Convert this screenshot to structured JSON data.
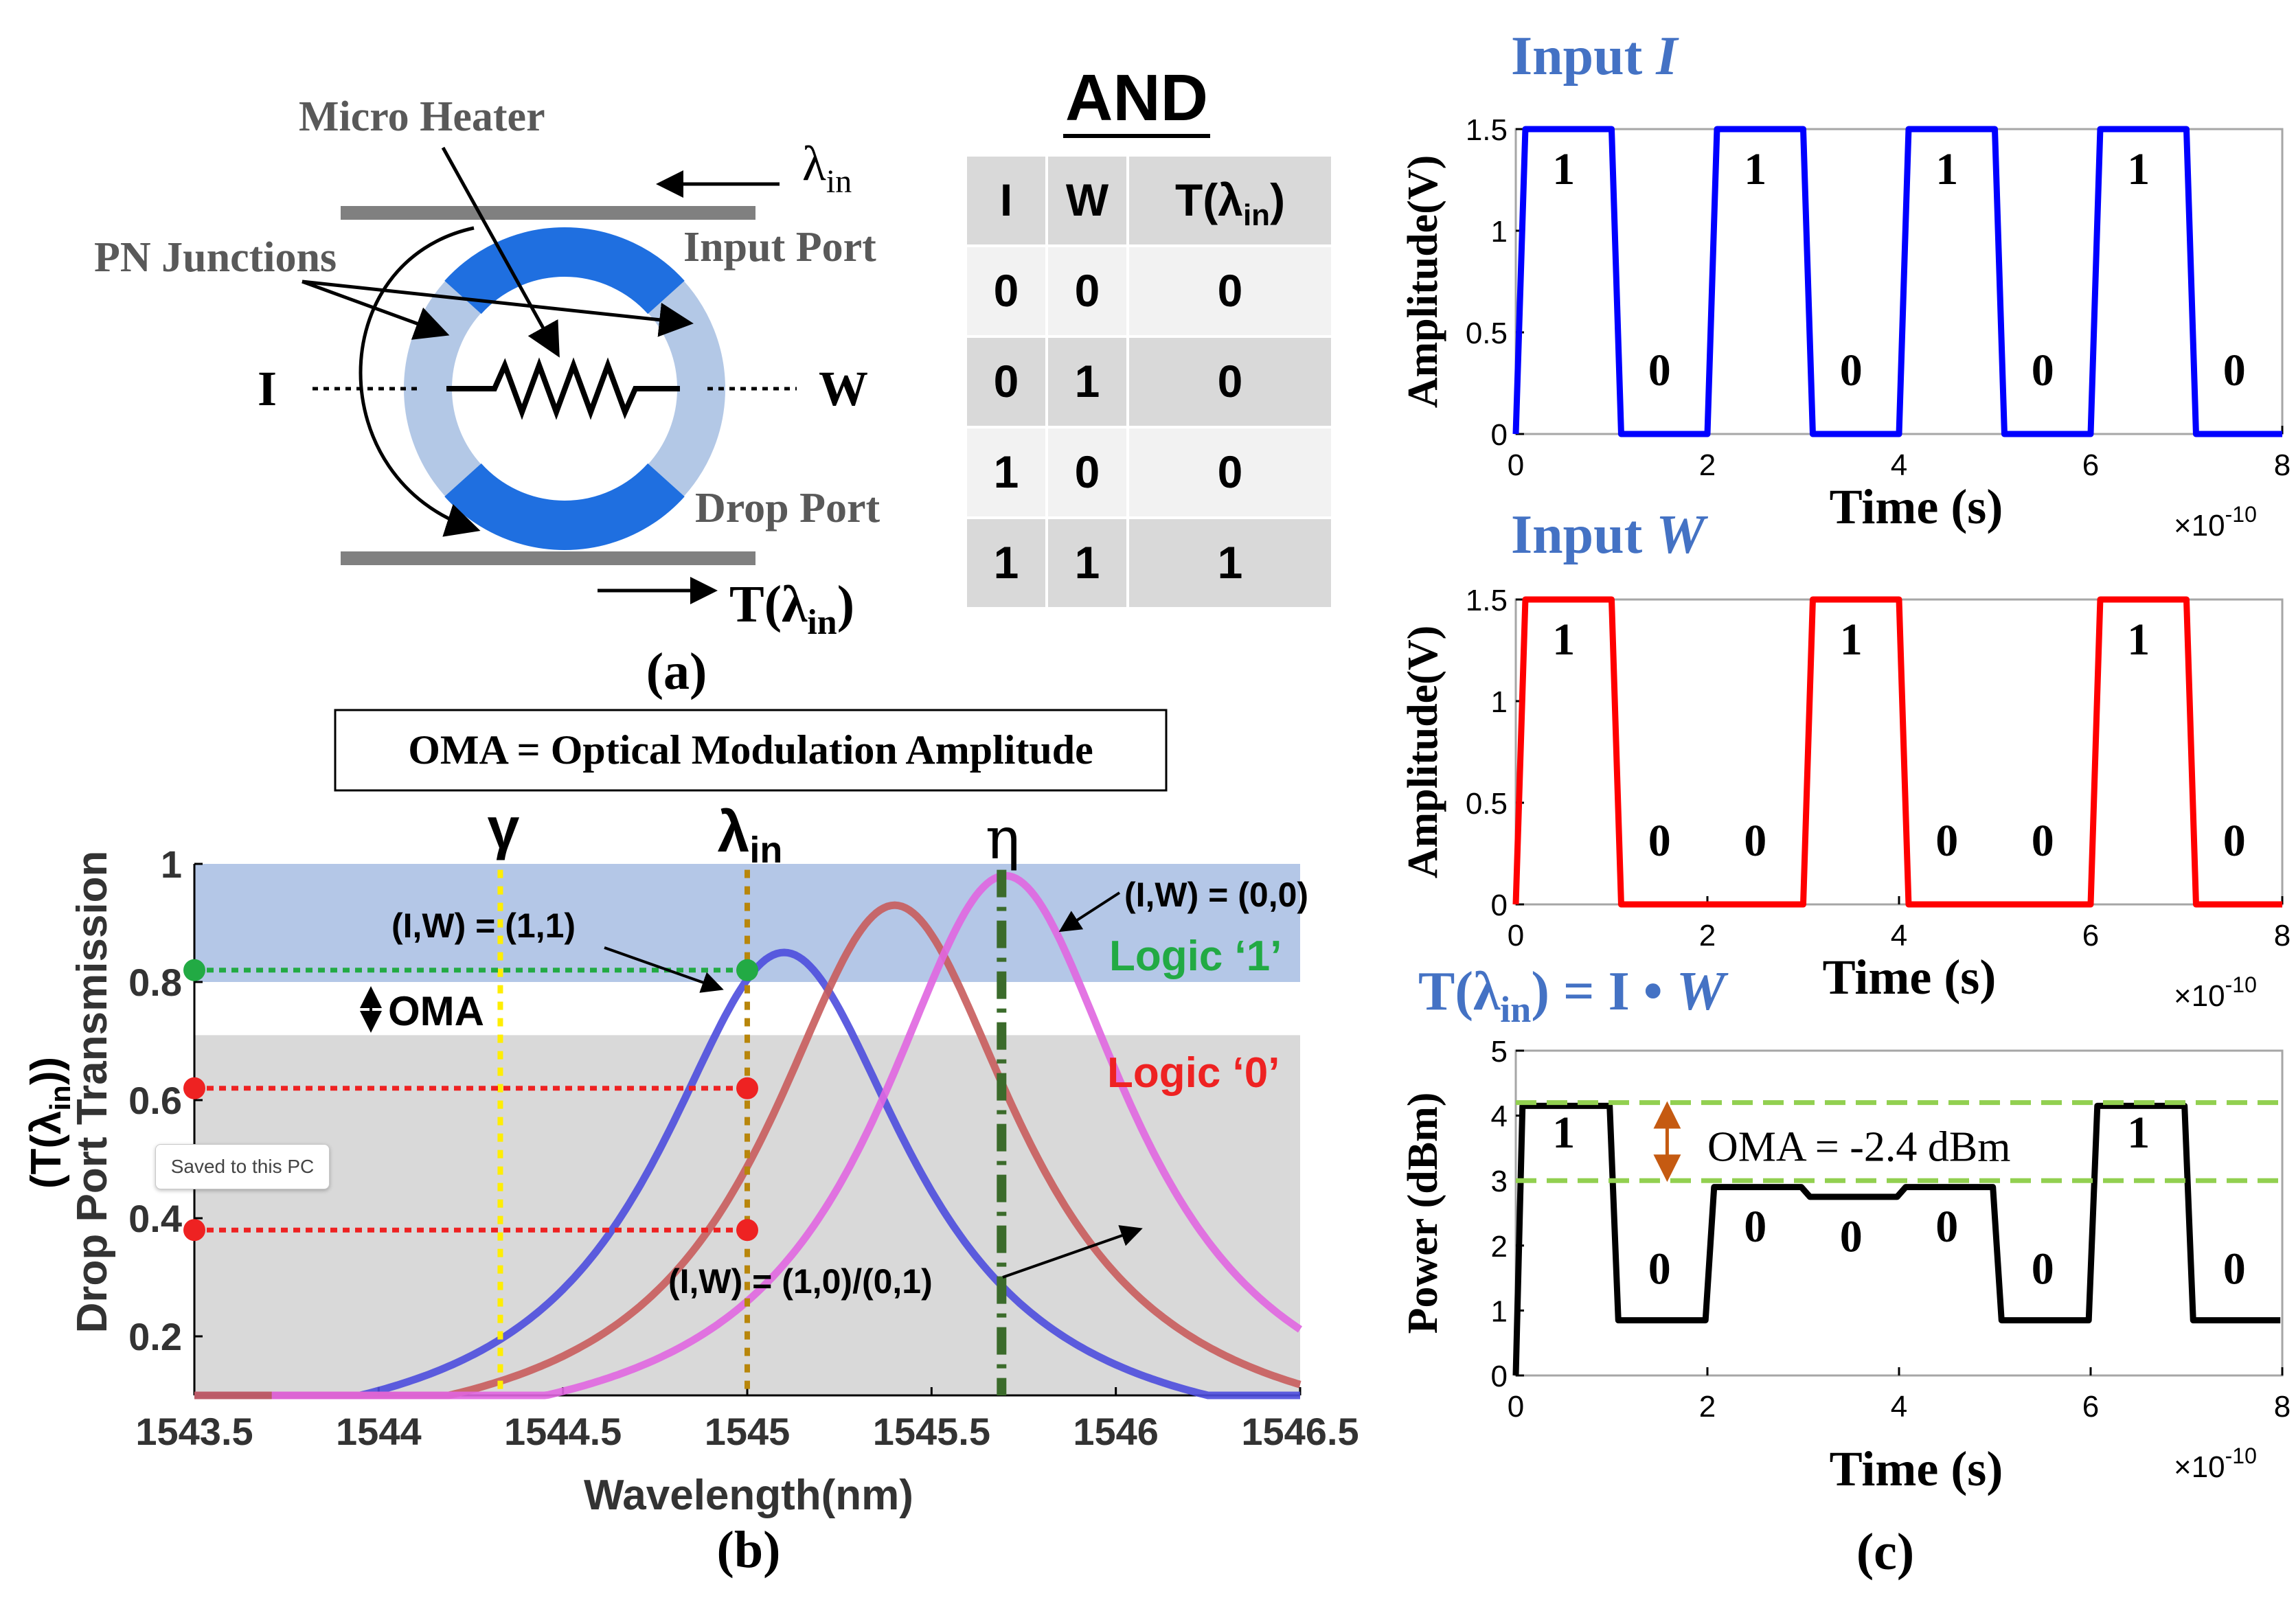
{
  "colors": {
    "ring_blue": "#1f6fe0",
    "ring_light": "#b3c8e6",
    "accent_blue": "#4472c4",
    "curve_11": "#4d4ddd",
    "curve_10": "#c85c5c",
    "curve_00": "#e066e0",
    "logic1": "#22aa44",
    "logic0": "#ee2222",
    "gamma_line": "#ffee00",
    "lambda_line": "#b8860b",
    "eta_line": "#3b6b2b",
    "trace_I": "#0000ff",
    "trace_W": "#ff0000",
    "trace_T": "#000000",
    "oma_dashed": "#92d050",
    "oma_arrow": "#c55a11"
  },
  "panel_a": {
    "label": "(a)",
    "micro_heater": "Micro Heater",
    "pn_junctions": "PN Junctions",
    "input_port": "Input Port",
    "drop_port": "Drop Port",
    "lambda_in": "λ",
    "lambda_sub": "in",
    "input_I": "I",
    "input_W": "W",
    "output_T": "T(λ",
    "output_sub": "in",
    "output_close": ")",
    "truth_table": {
      "title": "AND",
      "headers": [
        "I",
        "W",
        "T(λ"
      ],
      "header_sub": "in",
      "header_close": ")",
      "rows": [
        [
          "0",
          "0",
          "0"
        ],
        [
          "0",
          "1",
          "0"
        ],
        [
          "1",
          "0",
          "0"
        ],
        [
          "1",
          "1",
          "1"
        ]
      ]
    }
  },
  "panel_b": {
    "label": "(b)",
    "oma_box": "OMA = Optical Modulation Amplitude",
    "gamma": "γ",
    "lambda": "λ",
    "lambda_sub": "in",
    "eta": "η",
    "label_11": "(I,W) = (1,1)",
    "label_00": "(I,W) = (0,0)",
    "label_10": "(I,W) = (1,0)/(0,1)",
    "logic1": "Logic ‘1’",
    "logic0": "Logic ‘0’",
    "oma": "OMA",
    "toast": "Saved to this PC",
    "chart_data": {
      "type": "line",
      "xlabel": "Wavelength(nm)",
      "ylabel": "Drop Port Transmission",
      "ylabel2": "(T(λ",
      "ylabel2_sub": "in",
      "ylabel2_close": "))",
      "xlim": [
        1543.5,
        1546.5
      ],
      "ylim": [
        0.1,
        1.0
      ],
      "xticks": [
        "1543.5",
        "1544",
        "1544.5",
        "1545",
        "1545.5",
        "1546",
        "1546.5"
      ],
      "yticks": [
        "0.2",
        "0.4",
        "0.6",
        "0.8",
        "1"
      ],
      "series": [
        {
          "name": "(I,W) = (1,1)",
          "center": 1545.1,
          "peak": 0.85,
          "x_start": 1543.5
        },
        {
          "name": "(I,W) = (1,0)/(0,1)",
          "center": 1545.4,
          "peak": 0.93,
          "x_start": 1543.5
        },
        {
          "name": "(I,W) = (0,0)",
          "center": 1545.7,
          "peak": 0.98,
          "x_start": 1543.71
        }
      ],
      "gamma_x": 1544.33,
      "lambda_in_x": 1545.0,
      "eta_x": 1545.69,
      "logic1_band": [
        0.8,
        1.0
      ],
      "logic0_band": [
        0.1,
        0.71
      ],
      "level_11": 0.82,
      "level_10": 0.62,
      "level_00": 0.38
    }
  },
  "panel_c": {
    "label": "(c)",
    "title_I": "Input ",
    "title_I_var": "I",
    "title_W": "Input ",
    "title_W_var": "W",
    "title_T_pre": "T(λ",
    "title_T_sub": "in",
    "title_T_post": ") = I • ",
    "title_T_var": "W",
    "oma_label": "OMA = -2.4 dBm",
    "x_multiplier": "×10",
    "x_exp": "-10",
    "chart_data": [
      {
        "type": "line",
        "name": "Input I",
        "xlabel": "Time (s)",
        "ylabel": "Amplitude(V)",
        "xlim": [
          0,
          8
        ],
        "ylim": [
          0,
          1.5
        ],
        "xticks": [
          "0",
          "2",
          "4",
          "6",
          "8"
        ],
        "yticks": [
          "0",
          "0.5",
          "1",
          "1.5"
        ],
        "bits": [
          "1",
          "0",
          "1",
          "0",
          "1",
          "0",
          "1",
          "0"
        ],
        "high": 1.5,
        "low": 0
      },
      {
        "type": "line",
        "name": "Input W",
        "xlabel": "Time (s)",
        "ylabel": "Amplitude(V)",
        "xlim": [
          0,
          8
        ],
        "ylim": [
          0,
          1.5
        ],
        "xticks": [
          "0",
          "2",
          "4",
          "6",
          "8"
        ],
        "yticks": [
          "0",
          "0.5",
          "1",
          "1.5"
        ],
        "bits": [
          "1",
          "0",
          "0",
          "1",
          "0",
          "0",
          "1",
          "0"
        ],
        "high": 1.5,
        "low": 0
      },
      {
        "type": "line",
        "name": "T(λin) = I • W",
        "xlabel": "Time (s)",
        "ylabel": "Power (dBm)",
        "xlim": [
          0,
          8
        ],
        "ylim": [
          0,
          5
        ],
        "xticks": [
          "0",
          "2",
          "4",
          "6",
          "8"
        ],
        "yticks": [
          "0",
          "1",
          "2",
          "3",
          "4",
          "5"
        ],
        "bits": [
          "1",
          "0",
          "0",
          "0",
          "0",
          "0",
          "1",
          "0"
        ],
        "levels": [
          4.15,
          0.85,
          2.9,
          2.75,
          2.9,
          0.85,
          4.15,
          0.85
        ],
        "oma_high": 4.2,
        "oma_low": 3.0
      }
    ]
  }
}
